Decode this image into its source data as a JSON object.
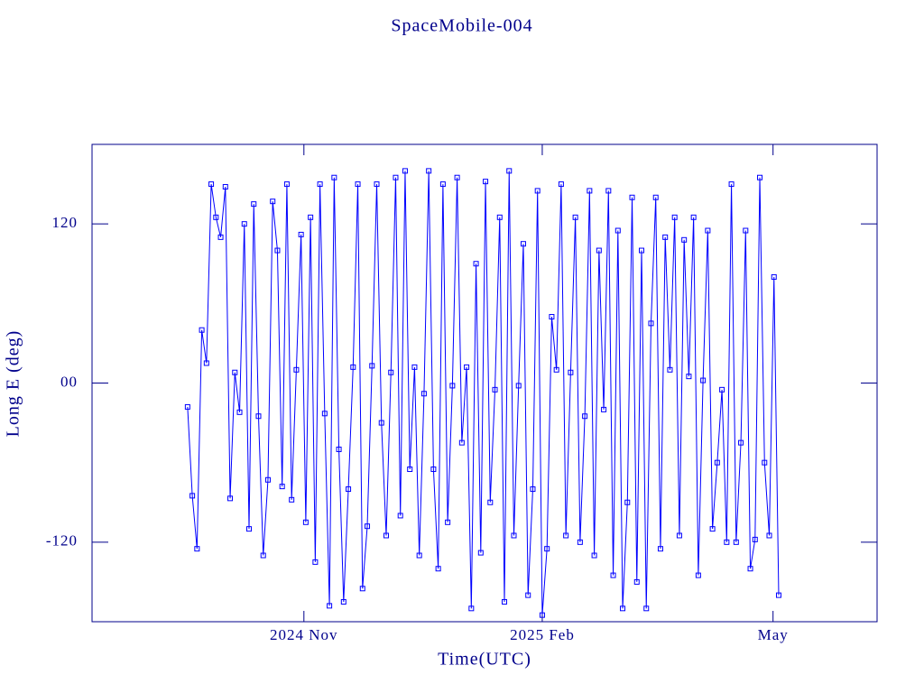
{
  "chart_data": {
    "type": "line",
    "title": "SpaceMobile-004",
    "x_label": "Time(UTC)",
    "y_label": "Long E (deg)",
    "color": "#0000ff",
    "axis_color": "#00008b",
    "markers": "square",
    "x": [
      2024.71,
      2024.715,
      2024.72,
      2024.725,
      2024.73,
      2024.735,
      2024.74,
      2024.745,
      2024.75,
      2024.755,
      2024.76,
      2024.765,
      2024.77,
      2024.775,
      2024.78,
      2024.785,
      2024.79,
      2024.795,
      2024.8,
      2024.805,
      2024.81,
      2024.815,
      2024.82,
      2024.825,
      2024.83,
      2024.835,
      2024.84,
      2024.845,
      2024.85,
      2024.855,
      2024.86,
      2024.865,
      2024.87,
      2024.875,
      2024.88,
      2024.885,
      2024.89,
      2024.895,
      2024.9,
      2024.905,
      2024.91,
      2024.915,
      2024.92,
      2024.925,
      2024.93,
      2024.935,
      2024.94,
      2024.945,
      2024.95,
      2024.955,
      2024.96,
      2024.965,
      2024.97,
      2024.975,
      2024.98,
      2024.985,
      2024.99,
      2024.995,
      2025,
      2025.005,
      2025.01,
      2025.015,
      2025.02,
      2025.025,
      2025.03,
      2025.035,
      2025.04,
      2025.045,
      2025.05,
      2025.055,
      2025.06,
      2025.065,
      2025.07,
      2025.075,
      2025.08,
      2025.085,
      2025.09,
      2025.095,
      2025.1,
      2025.105,
      2025.11,
      2025.115,
      2025.12,
      2025.125,
      2025.13,
      2025.135,
      2025.14,
      2025.145,
      2025.15,
      2025.155,
      2025.16,
      2025.165,
      2025.17,
      2025.175,
      2025.18,
      2025.185,
      2025.19,
      2025.195,
      2025.2,
      2025.205,
      2025.21,
      2025.215,
      2025.22,
      2025.225,
      2025.23,
      2025.235,
      2025.24,
      2025.245,
      2025.25,
      2025.255,
      2025.26,
      2025.265,
      2025.27,
      2025.275,
      2025.28,
      2025.285,
      2025.29,
      2025.295,
      2025.3,
      2025.305,
      2025.31,
      2025.315,
      2025.32,
      2025.325,
      2025.33,
      2025.335
    ],
    "values": [
      -18,
      -85,
      -125,
      40,
      15,
      150,
      125,
      110,
      148,
      -87,
      8,
      -22,
      120,
      -110,
      135,
      -25,
      -130,
      -73,
      137,
      100,
      -78,
      150,
      -88,
      10,
      112,
      -105,
      125,
      -135,
      150,
      -23,
      -168,
      155,
      -50,
      -165,
      -80,
      12,
      150,
      -155,
      -108,
      13,
      150,
      -30,
      -115,
      8,
      155,
      -100,
      160,
      -65,
      12,
      -130,
      -8,
      160,
      -65,
      -140,
      150,
      -105,
      -2,
      155,
      -45,
      12,
      -170,
      90,
      -128,
      152,
      -90,
      -5,
      125,
      -165,
      160,
      -115,
      -2,
      105,
      -160,
      -80,
      145,
      -175,
      -125,
      50,
      10,
      150,
      -115,
      8,
      125,
      -120,
      -25,
      145,
      -130,
      100,
      -20,
      145,
      -145,
      115,
      -170,
      -90,
      140,
      -150,
      100,
      -170,
      45,
      140,
      -125,
      110,
      10,
      125,
      -115,
      108,
      5,
      125,
      -145,
      2,
      115,
      -110,
      -60,
      -5,
      -120,
      150,
      -120,
      -45,
      115,
      -140,
      -118,
      155,
      -60,
      -115,
      80,
      -160
    ],
    "xlim": [
      2024.609,
      2025.439
    ],
    "xticks": [
      {
        "value": 2024.833,
        "label": "2024 Nov"
      },
      {
        "value": 2025.085,
        "label": "2025 Feb"
      },
      {
        "value": 2025.329,
        "label": "May"
      }
    ],
    "ylim": [
      -180,
      180
    ],
    "yticks": [
      -120,
      {
        "value": 0,
        "label": "00"
      },
      120
    ]
  }
}
